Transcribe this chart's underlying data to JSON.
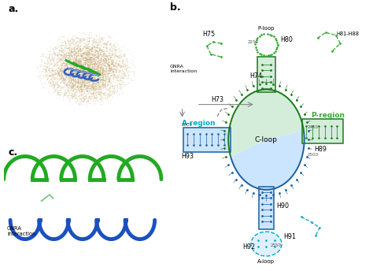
{
  "panel_a_label": "a.",
  "panel_b_label": "b.",
  "panel_c_label": "c.",
  "p_region_color": "#d4edda",
  "a_region_color": "#cce5ff",
  "green_dark": "#1a7a1a",
  "green_medium": "#2e8b2e",
  "blue_dark": "#1a5fa0",
  "blue_medium": "#3a7cc0",
  "cyan_text": "#00aacc",
  "green_text": "#33aa33",
  "dashed_green": "#33aa33",
  "dashed_cyan": "#00aacc",
  "dashed_gray": "#888888",
  "tan_dark": "#b8a070",
  "tan_light": "#d4bb8a",
  "fig_width": 4.74,
  "fig_height": 3.44,
  "dpi": 100
}
